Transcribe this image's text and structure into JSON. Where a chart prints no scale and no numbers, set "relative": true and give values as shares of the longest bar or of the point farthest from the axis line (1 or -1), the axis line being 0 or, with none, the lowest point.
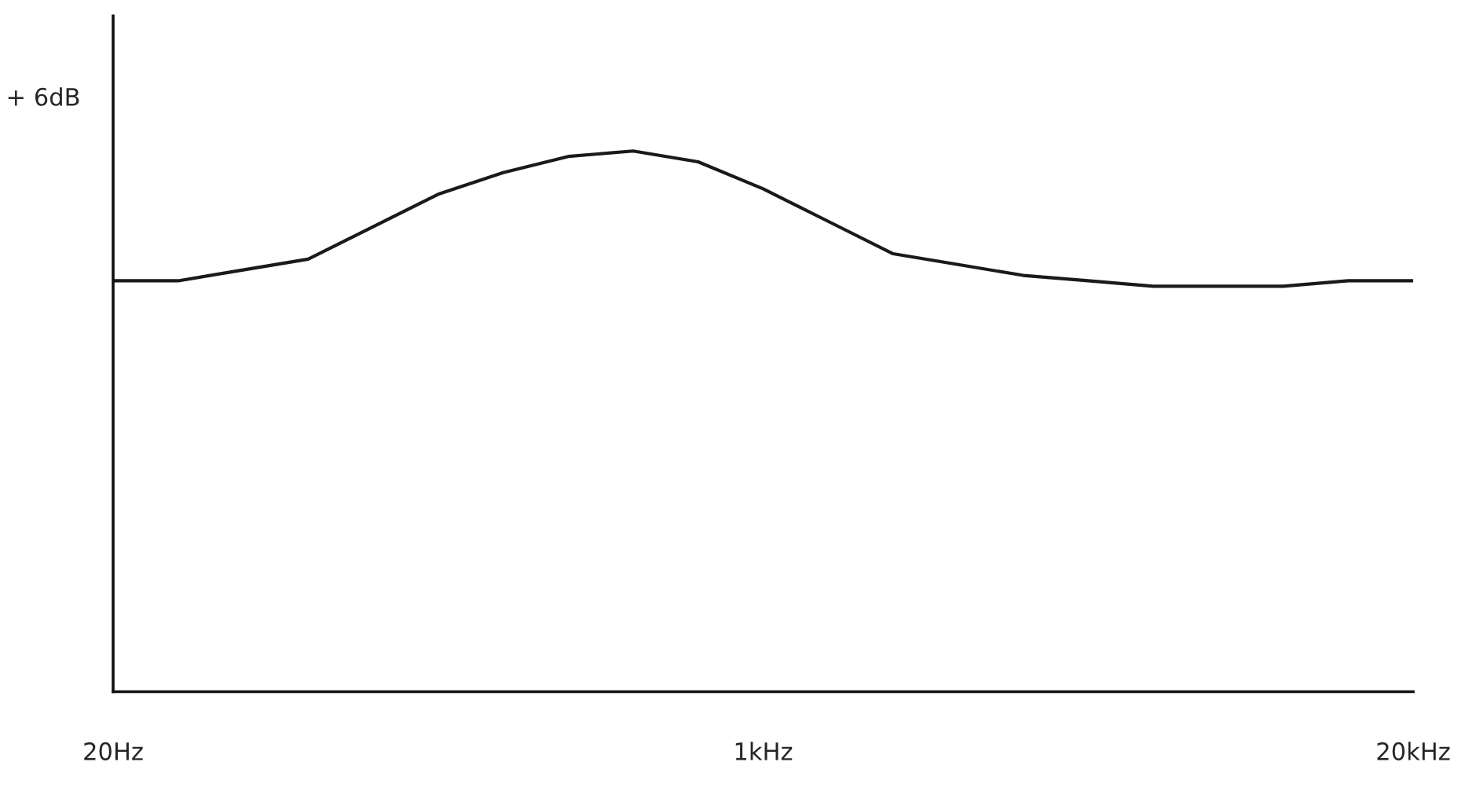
{
  "chart_data": {
    "type": "line",
    "relative": true,
    "categories": [
      "20Hz",
      null,
      null,
      null,
      null,
      null,
      null,
      null,
      null,
      null,
      "1kHz",
      null,
      null,
      null,
      null,
      null,
      null,
      null,
      null,
      null,
      "20kHz"
    ],
    "series": [
      {
        "color": "#1a1a1a",
        "values": [
          0.76,
          0.76,
          0.78,
          0.8,
          0.86,
          0.92,
          0.96,
          0.99,
          1,
          0.98,
          0.93,
          0.87,
          0.81,
          0.79,
          0.77,
          0.76,
          0.75,
          0.75,
          0.75,
          0.76,
          0.76
        ]
      }
    ],
    "tick_labels": "x",
    "grid": false,
    "legend": false,
    "marker": "none",
    "line_style": "solid",
    "annotations": [
      "+ 6dB"
    ]
  }
}
